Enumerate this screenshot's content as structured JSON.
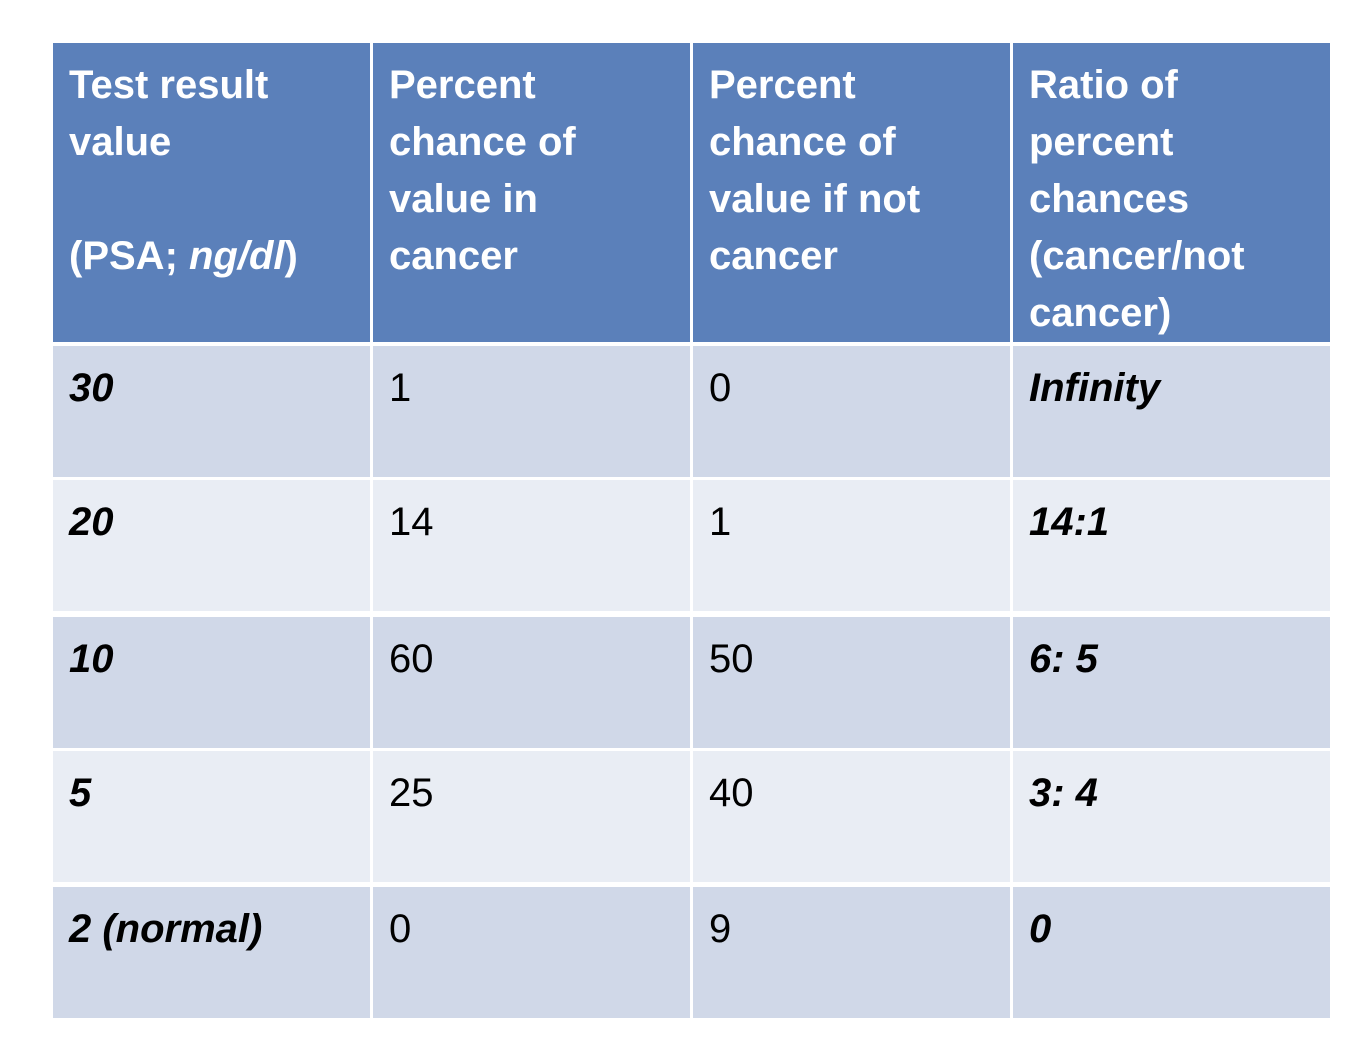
{
  "table": {
    "header": [
      [
        "Test result value",
        "(PSA; ",
        "ng/dl",
        ")"
      ],
      "Percent chance of value in cancer",
      "Percent chance of value if not cancer",
      "Ratio of percent chances (cancer/not cancer)"
    ],
    "rows": [
      [
        30,
        1,
        0,
        "Infinity"
      ],
      [
        20,
        14,
        1,
        "14:1"
      ],
      [
        10,
        60,
        50,
        "6: 5"
      ],
      [
        5,
        25,
        40,
        "3: 4"
      ],
      [
        "2 (normal)",
        0,
        9,
        "0"
      ]
    ]
  }
}
